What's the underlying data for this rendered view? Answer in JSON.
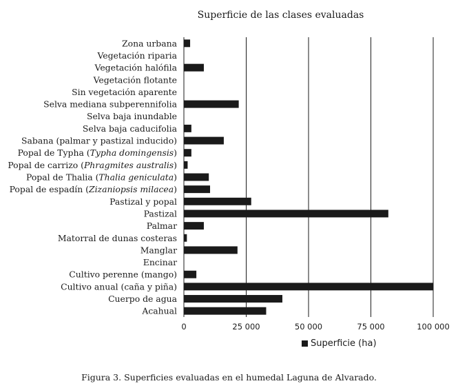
{
  "figure": {
    "caption": "Figura 3. Superficies evaluadas en el humedal Laguna de Alvarado."
  },
  "chart_data": {
    "type": "bar",
    "orientation": "horizontal",
    "title": "Superficie de las clases evaluadas",
    "xlabel": "",
    "ylabel": "",
    "xlim": [
      0,
      100000
    ],
    "x_ticks": [
      0,
      25000,
      50000,
      75000,
      100000
    ],
    "x_tick_labels": [
      "0",
      "25 000",
      "50 000",
      "75 000",
      "100 000"
    ],
    "grid": true,
    "legend_position": "bottom",
    "series": [
      {
        "name": "Superficie (ha)",
        "color": "#1a1a1a",
        "values": [
          2500,
          0,
          8000,
          0,
          0,
          22000,
          0,
          3000,
          16000,
          3000,
          1500,
          10000,
          10500,
          27000,
          82000,
          8000,
          1200,
          21500,
          0,
          5000,
          100000,
          39500,
          33000
        ]
      }
    ],
    "categories": [
      [
        {
          "t": "Zona urbana"
        }
      ],
      [
        {
          "t": "Vegetación riparia"
        }
      ],
      [
        {
          "t": "Vegetación halófila"
        }
      ],
      [
        {
          "t": "Vegetación flotante"
        }
      ],
      [
        {
          "t": "Sin vegetación aparente"
        }
      ],
      [
        {
          "t": "Selva mediana subperennifolia"
        }
      ],
      [
        {
          "t": "Selva baja inundable"
        }
      ],
      [
        {
          "t": "Selva baja caducifolia"
        }
      ],
      [
        {
          "t": "Sabana (palmar y pastizal inducido)"
        }
      ],
      [
        {
          "t": "Popal de Typha ("
        },
        {
          "t": "Typha domingensis",
          "i": true
        },
        {
          "t": ")"
        }
      ],
      [
        {
          "t": "Popal de carrizo ("
        },
        {
          "t": "Phragmites australis",
          "i": true
        },
        {
          "t": ")"
        }
      ],
      [
        {
          "t": "Popal de Thalia ("
        },
        {
          "t": "Thalia geniculata",
          "i": true
        },
        {
          "t": ")"
        }
      ],
      [
        {
          "t": "Popal de espadín ("
        },
        {
          "t": "Zizaniopsis milacea",
          "i": true
        },
        {
          "t": ")"
        }
      ],
      [
        {
          "t": "Pastizal y popal"
        }
      ],
      [
        {
          "t": "Pastizal"
        }
      ],
      [
        {
          "t": "Palmar"
        }
      ],
      [
        {
          "t": "Matorral de dunas costeras"
        }
      ],
      [
        {
          "t": "Manglar"
        }
      ],
      [
        {
          "t": "Encinar"
        }
      ],
      [
        {
          "t": "Cultivo perenne (mango)"
        }
      ],
      [
        {
          "t": "Cultivo anual (caña y piña)"
        }
      ],
      [
        {
          "t": "Cuerpo de agua"
        }
      ],
      [
        {
          "t": "Acahual"
        }
      ]
    ]
  }
}
